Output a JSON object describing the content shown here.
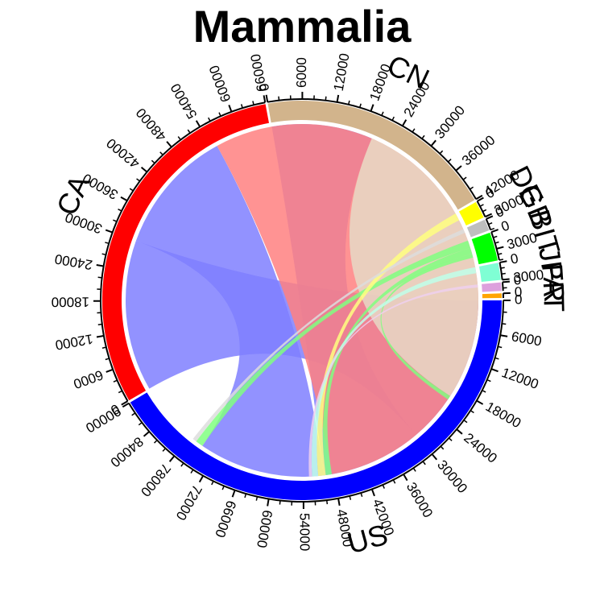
{
  "chart_data": {
    "type": "chord",
    "title": "Mammalia",
    "sectors": [
      {
        "name": "US",
        "total": 90000,
        "color": "#0000FF",
        "link_color": "#7F7FFF"
      },
      {
        "name": "CA",
        "total": 66000,
        "color": "#FF0000",
        "link_color": "#FF8080"
      },
      {
        "name": "CN",
        "total": 42000,
        "color": "#D2B48C",
        "link_color": "#E6D9C5"
      },
      {
        "name": "DE",
        "total": 3000,
        "color": "#FFFF00",
        "link_color": "#FFFF80"
      },
      {
        "name": "GB",
        "total": 2000,
        "color": "#BEBEBE",
        "link_color": "#DDDDDD"
      },
      {
        "name": "BIT",
        "total": 5000,
        "color": "#00FF00",
        "link_color": "#80FF80"
      },
      {
        "name": "JP",
        "total": 3000,
        "color": "#7FFFD4",
        "link_color": "#BFFFEA"
      },
      {
        "name": "FR",
        "total": 1500,
        "color": "#DDA0DD",
        "link_color": "#EED0EE"
      },
      {
        "name": "AT",
        "total": 800,
        "color": "#FFA500",
        "link_color": "#FFD280"
      }
    ],
    "links": [
      {
        "source": "US",
        "target": "CA",
        "value": 30000
      },
      {
        "source": "US",
        "target": "CN",
        "value": 20000
      },
      {
        "source": "US",
        "target": "CA",
        "value": 25000
      },
      {
        "source": "CA",
        "target": "CA",
        "value": 60000
      },
      {
        "source": "CN",
        "target": "CN",
        "value": 30000
      },
      {
        "source": "BIT",
        "target": "US",
        "value": 1500
      },
      {
        "source": "BIT",
        "target": "CA",
        "value": 1200
      },
      {
        "source": "BIT",
        "target": "CN",
        "value": 800
      },
      {
        "source": "DE",
        "target": "CA",
        "value": 1500
      },
      {
        "source": "JP",
        "target": "CA",
        "value": 1200
      },
      {
        "source": "GB",
        "target": "US",
        "value": 800
      },
      {
        "source": "FR",
        "target": "CA",
        "value": 600
      }
    ]
  }
}
